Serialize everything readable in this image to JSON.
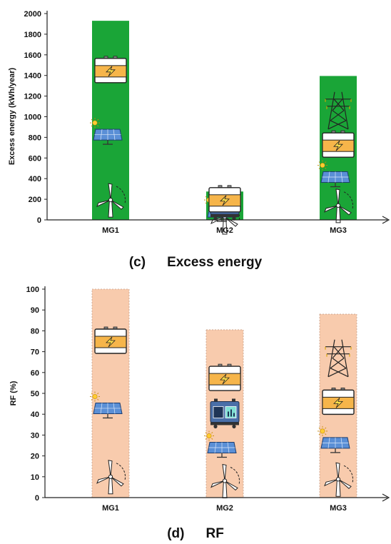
{
  "chart_data": [
    {
      "type": "bar",
      "caption_letter": "(c)",
      "caption_title": "Excess energy",
      "xlabel": "",
      "ylabel": "Excess energy (kWh/year)",
      "categories": [
        "MG1",
        "MG2",
        "MG3"
      ],
      "values": [
        1930,
        275,
        1395
      ],
      "ylim": [
        0,
        2000
      ],
      "yticks": [
        "0",
        "200",
        "400",
        "600",
        "800",
        "1000",
        "1200",
        "1400",
        "1600",
        "1800",
        "2000"
      ],
      "grid": false,
      "bar_color": "#1aa537",
      "component_icons": [
        [
          "wind-turbine",
          "solar-panel",
          "battery"
        ],
        [
          "wind-turbine",
          "solar-panel",
          "diesel-generator",
          "battery"
        ],
        [
          "wind-turbine",
          "solar-panel",
          "battery",
          "grid-tower"
        ]
      ]
    },
    {
      "type": "bar",
      "caption_letter": "(d)",
      "caption_title": "RF",
      "xlabel": "",
      "ylabel": "RF (%)",
      "categories": [
        "MG1",
        "MG2",
        "MG3"
      ],
      "values": [
        100,
        80.5,
        88
      ],
      "ylim": [
        0,
        100
      ],
      "yticks": [
        "0",
        "10",
        "20",
        "30",
        "40",
        "50",
        "60",
        "70",
        "80",
        "90",
        "100"
      ],
      "grid": false,
      "bar_color": "#f8cbad",
      "component_icons": [
        [
          "wind-turbine",
          "solar-panel",
          "battery"
        ],
        [
          "wind-turbine",
          "solar-panel",
          "diesel-generator",
          "battery"
        ],
        [
          "wind-turbine",
          "solar-panel",
          "battery",
          "grid-tower"
        ]
      ]
    }
  ]
}
